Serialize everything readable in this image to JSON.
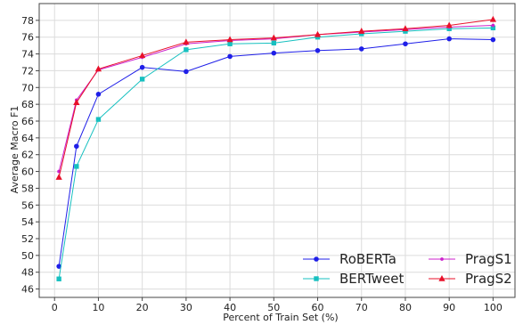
{
  "chart_data": {
    "type": "line",
    "xlabel": "Percent of Train Set (%)",
    "ylabel": "Average Macro F1",
    "xlim": [
      -3.5,
      105
    ],
    "ylim": [
      45,
      80
    ],
    "xticks": [
      0,
      10,
      20,
      30,
      40,
      50,
      60,
      70,
      80,
      90,
      100
    ],
    "yticks": [
      46,
      48,
      50,
      52,
      54,
      56,
      58,
      60,
      62,
      64,
      66,
      68,
      70,
      72,
      74,
      76,
      78
    ],
    "grid": true,
    "legend_position": "lower-right",
    "x": [
      1,
      5,
      10,
      20,
      30,
      40,
      50,
      60,
      70,
      80,
      90,
      100
    ],
    "series": [
      {
        "name": "RoBERTa",
        "color": "#1f1fe8",
        "marker": "circle",
        "values": [
          48.7,
          63.0,
          69.2,
          72.4,
          71.9,
          73.7,
          74.1,
          74.4,
          74.6,
          75.2,
          75.8,
          75.7
        ]
      },
      {
        "name": "BERTweet",
        "color": "#17c0c0",
        "marker": "square",
        "values": [
          47.2,
          60.6,
          66.2,
          71.0,
          74.5,
          75.2,
          75.3,
          76.0,
          76.4,
          76.7,
          77.0,
          77.1
        ]
      },
      {
        "name": "PragS1",
        "color": "#cc22cc",
        "marker": "dot",
        "values": [
          60.0,
          68.5,
          72.1,
          73.6,
          75.2,
          75.6,
          75.8,
          76.3,
          76.6,
          76.9,
          77.2,
          77.4
        ]
      },
      {
        "name": "PragS2",
        "color": "#e8102a",
        "marker": "triangle",
        "values": [
          59.3,
          68.2,
          72.2,
          73.8,
          75.4,
          75.7,
          75.9,
          76.3,
          76.7,
          77.0,
          77.4,
          78.1
        ]
      }
    ]
  }
}
